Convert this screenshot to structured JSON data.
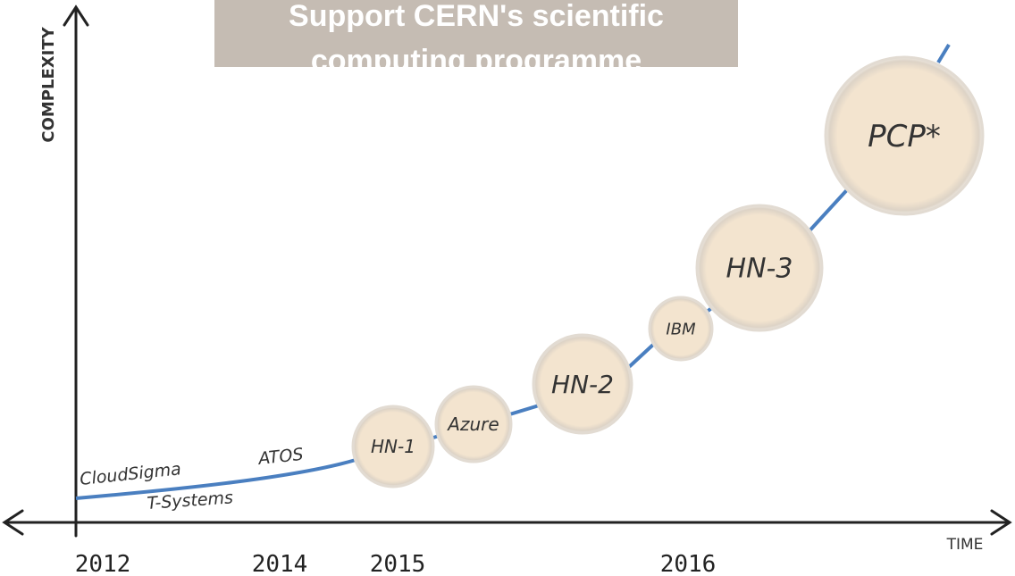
{
  "header": {
    "title_lines": [
      "Support CERN's scientific",
      "computing programme"
    ]
  },
  "axes": {
    "y_label": "COMPLEXITY",
    "x_label": "TIME"
  },
  "years": [
    "2012",
    "2014",
    "2015",
    "2016"
  ],
  "labels": [
    "CloudSigma",
    "T-Systems",
    "ATOS"
  ],
  "nodes": [
    {
      "label": "HN-1"
    },
    {
      "label": "Azure"
    },
    {
      "label": "HN-2"
    },
    {
      "label": "IBM"
    },
    {
      "label": "HN-3"
    },
    {
      "label": "PCP*"
    }
  ]
}
